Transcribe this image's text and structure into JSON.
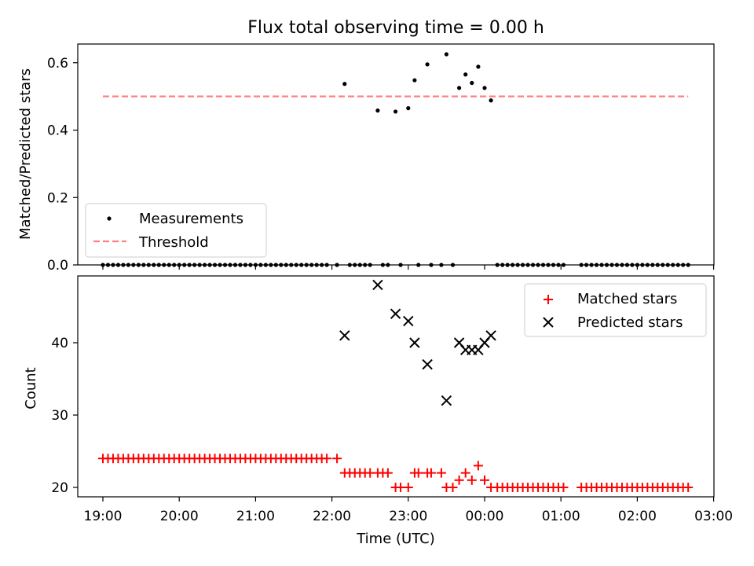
{
  "chart_data": [
    {
      "type": "scatter",
      "title": "Flux total observing time = 0.00 h",
      "ylabel": "Matched/Predicted stars",
      "xlabel": "",
      "xlim": [
        "18:40",
        "03:00"
      ],
      "ylim": [
        0.0,
        0.65
      ],
      "y_ticks": [
        "0.0",
        "0.2",
        "0.4",
        "0.6"
      ],
      "legend": [
        "Measurements",
        "Threshold"
      ],
      "legend_position": "lower-left",
      "threshold": 0.5,
      "threshold_range": [
        "19:00",
        "02:40"
      ],
      "measurements": [
        {
          "t": "19:00",
          "v": 0
        },
        {
          "t": "19:04",
          "v": 0
        },
        {
          "t": "19:08",
          "v": 0
        },
        {
          "t": "19:12",
          "v": 0
        },
        {
          "t": "19:16",
          "v": 0
        },
        {
          "t": "19:20",
          "v": 0
        },
        {
          "t": "19:24",
          "v": 0
        },
        {
          "t": "19:28",
          "v": 0
        },
        {
          "t": "19:32",
          "v": 0
        },
        {
          "t": "19:36",
          "v": 0
        },
        {
          "t": "19:40",
          "v": 0
        },
        {
          "t": "19:44",
          "v": 0
        },
        {
          "t": "19:48",
          "v": 0
        },
        {
          "t": "19:52",
          "v": 0
        },
        {
          "t": "19:56",
          "v": 0
        },
        {
          "t": "20:00",
          "v": 0
        },
        {
          "t": "20:04",
          "v": 0
        },
        {
          "t": "20:08",
          "v": 0
        },
        {
          "t": "20:12",
          "v": 0
        },
        {
          "t": "20:16",
          "v": 0
        },
        {
          "t": "20:20",
          "v": 0
        },
        {
          "t": "20:24",
          "v": 0
        },
        {
          "t": "20:28",
          "v": 0
        },
        {
          "t": "20:32",
          "v": 0
        },
        {
          "t": "20:36",
          "v": 0
        },
        {
          "t": "20:40",
          "v": 0
        },
        {
          "t": "20:44",
          "v": 0
        },
        {
          "t": "20:48",
          "v": 0
        },
        {
          "t": "20:52",
          "v": 0
        },
        {
          "t": "20:56",
          "v": 0
        },
        {
          "t": "21:00",
          "v": 0
        },
        {
          "t": "21:04",
          "v": 0
        },
        {
          "t": "21:08",
          "v": 0
        },
        {
          "t": "21:12",
          "v": 0
        },
        {
          "t": "21:16",
          "v": 0
        },
        {
          "t": "21:20",
          "v": 0
        },
        {
          "t": "21:24",
          "v": 0
        },
        {
          "t": "21:28",
          "v": 0
        },
        {
          "t": "21:32",
          "v": 0
        },
        {
          "t": "21:36",
          "v": 0
        },
        {
          "t": "21:40",
          "v": 0
        },
        {
          "t": "21:44",
          "v": 0
        },
        {
          "t": "21:48",
          "v": 0
        },
        {
          "t": "21:52",
          "v": 0
        },
        {
          "t": "21:56",
          "v": 0
        },
        {
          "t": "22:04",
          "v": 0
        },
        {
          "t": "22:10",
          "v": 0.537
        },
        {
          "t": "22:14",
          "v": 0
        },
        {
          "t": "22:18",
          "v": 0
        },
        {
          "t": "22:22",
          "v": 0
        },
        {
          "t": "22:26",
          "v": 0
        },
        {
          "t": "22:30",
          "v": 0
        },
        {
          "t": "22:36",
          "v": 0.458
        },
        {
          "t": "22:40",
          "v": 0
        },
        {
          "t": "22:44",
          "v": 0
        },
        {
          "t": "22:50",
          "v": 0.455
        },
        {
          "t": "22:54",
          "v": 0
        },
        {
          "t": "23:00",
          "v": 0.465
        },
        {
          "t": "23:05",
          "v": 0.548
        },
        {
          "t": "23:08",
          "v": 0
        },
        {
          "t": "23:15",
          "v": 0.595
        },
        {
          "t": "23:18",
          "v": 0
        },
        {
          "t": "23:26",
          "v": 0
        },
        {
          "t": "23:30",
          "v": 0.625
        },
        {
          "t": "23:35",
          "v": 0
        },
        {
          "t": "23:40",
          "v": 0.525
        },
        {
          "t": "23:45",
          "v": 0.565
        },
        {
          "t": "23:50",
          "v": 0.54
        },
        {
          "t": "23:55",
          "v": 0.588
        },
        {
          "t": "00:00",
          "v": 0.525
        },
        {
          "t": "00:05",
          "v": 0.488
        },
        {
          "t": "00:10",
          "v": 0
        },
        {
          "t": "00:14",
          "v": 0
        },
        {
          "t": "00:18",
          "v": 0
        },
        {
          "t": "00:22",
          "v": 0
        },
        {
          "t": "00:26",
          "v": 0
        },
        {
          "t": "00:30",
          "v": 0
        },
        {
          "t": "00:34",
          "v": 0
        },
        {
          "t": "00:38",
          "v": 0
        },
        {
          "t": "00:42",
          "v": 0
        },
        {
          "t": "00:46",
          "v": 0
        },
        {
          "t": "00:50",
          "v": 0
        },
        {
          "t": "00:54",
          "v": 0
        },
        {
          "t": "00:58",
          "v": 0
        },
        {
          "t": "01:02",
          "v": 0
        },
        {
          "t": "01:16",
          "v": 0
        },
        {
          "t": "01:20",
          "v": 0
        },
        {
          "t": "01:24",
          "v": 0
        },
        {
          "t": "01:28",
          "v": 0
        },
        {
          "t": "01:32",
          "v": 0
        },
        {
          "t": "01:36",
          "v": 0
        },
        {
          "t": "01:40",
          "v": 0
        },
        {
          "t": "01:44",
          "v": 0
        },
        {
          "t": "01:48",
          "v": 0
        },
        {
          "t": "01:52",
          "v": 0
        },
        {
          "t": "01:56",
          "v": 0
        },
        {
          "t": "02:00",
          "v": 0
        },
        {
          "t": "02:04",
          "v": 0
        },
        {
          "t": "02:08",
          "v": 0
        },
        {
          "t": "02:12",
          "v": 0
        },
        {
          "t": "02:16",
          "v": 0
        },
        {
          "t": "02:20",
          "v": 0
        },
        {
          "t": "02:24",
          "v": 0
        },
        {
          "t": "02:28",
          "v": 0
        },
        {
          "t": "02:32",
          "v": 0
        },
        {
          "t": "02:36",
          "v": 0
        },
        {
          "t": "02:40",
          "v": 0
        }
      ]
    },
    {
      "type": "scatter",
      "ylabel": "Count",
      "xlabel": "Time (UTC)",
      "xlim": [
        "18:40",
        "03:00"
      ],
      "ylim": [
        19,
        49
      ],
      "y_ticks": [
        "20",
        "30",
        "40"
      ],
      "x_ticks": [
        "19:00",
        "20:00",
        "21:00",
        "22:00",
        "23:00",
        "00:00",
        "01:00",
        "02:00",
        "03:00"
      ],
      "legend": [
        "Matched stars",
        "Predicted stars"
      ],
      "legend_position": "upper-right",
      "matched": [
        {
          "t": "19:00",
          "v": 24
        },
        {
          "t": "19:04",
          "v": 24
        },
        {
          "t": "19:08",
          "v": 24
        },
        {
          "t": "19:12",
          "v": 24
        },
        {
          "t": "19:16",
          "v": 24
        },
        {
          "t": "19:20",
          "v": 24
        },
        {
          "t": "19:24",
          "v": 24
        },
        {
          "t": "19:28",
          "v": 24
        },
        {
          "t": "19:32",
          "v": 24
        },
        {
          "t": "19:36",
          "v": 24
        },
        {
          "t": "19:40",
          "v": 24
        },
        {
          "t": "19:44",
          "v": 24
        },
        {
          "t": "19:48",
          "v": 24
        },
        {
          "t": "19:52",
          "v": 24
        },
        {
          "t": "19:56",
          "v": 24
        },
        {
          "t": "20:00",
          "v": 24
        },
        {
          "t": "20:04",
          "v": 24
        },
        {
          "t": "20:08",
          "v": 24
        },
        {
          "t": "20:12",
          "v": 24
        },
        {
          "t": "20:16",
          "v": 24
        },
        {
          "t": "20:20",
          "v": 24
        },
        {
          "t": "20:24",
          "v": 24
        },
        {
          "t": "20:28",
          "v": 24
        },
        {
          "t": "20:32",
          "v": 24
        },
        {
          "t": "20:36",
          "v": 24
        },
        {
          "t": "20:40",
          "v": 24
        },
        {
          "t": "20:44",
          "v": 24
        },
        {
          "t": "20:48",
          "v": 24
        },
        {
          "t": "20:52",
          "v": 24
        },
        {
          "t": "20:56",
          "v": 24
        },
        {
          "t": "21:00",
          "v": 24
        },
        {
          "t": "21:04",
          "v": 24
        },
        {
          "t": "21:08",
          "v": 24
        },
        {
          "t": "21:12",
          "v": 24
        },
        {
          "t": "21:16",
          "v": 24
        },
        {
          "t": "21:20",
          "v": 24
        },
        {
          "t": "21:24",
          "v": 24
        },
        {
          "t": "21:28",
          "v": 24
        },
        {
          "t": "21:32",
          "v": 24
        },
        {
          "t": "21:36",
          "v": 24
        },
        {
          "t": "21:40",
          "v": 24
        },
        {
          "t": "21:44",
          "v": 24
        },
        {
          "t": "21:48",
          "v": 24
        },
        {
          "t": "21:52",
          "v": 24
        },
        {
          "t": "21:56",
          "v": 24
        },
        {
          "t": "22:04",
          "v": 24
        },
        {
          "t": "22:10",
          "v": 22
        },
        {
          "t": "22:14",
          "v": 22
        },
        {
          "t": "22:18",
          "v": 22
        },
        {
          "t": "22:22",
          "v": 22
        },
        {
          "t": "22:26",
          "v": 22
        },
        {
          "t": "22:30",
          "v": 22
        },
        {
          "t": "22:36",
          "v": 22
        },
        {
          "t": "22:40",
          "v": 22
        },
        {
          "t": "22:44",
          "v": 22
        },
        {
          "t": "22:50",
          "v": 20
        },
        {
          "t": "22:54",
          "v": 20
        },
        {
          "t": "23:00",
          "v": 20
        },
        {
          "t": "23:05",
          "v": 22
        },
        {
          "t": "23:08",
          "v": 22
        },
        {
          "t": "23:15",
          "v": 22
        },
        {
          "t": "23:18",
          "v": 22
        },
        {
          "t": "23:26",
          "v": 22
        },
        {
          "t": "23:30",
          "v": 20
        },
        {
          "t": "23:35",
          "v": 20
        },
        {
          "t": "23:40",
          "v": 21
        },
        {
          "t": "23:45",
          "v": 22
        },
        {
          "t": "23:50",
          "v": 21
        },
        {
          "t": "23:55",
          "v": 23
        },
        {
          "t": "00:00",
          "v": 21
        },
        {
          "t": "00:05",
          "v": 20
        },
        {
          "t": "00:10",
          "v": 20
        },
        {
          "t": "00:14",
          "v": 20
        },
        {
          "t": "00:18",
          "v": 20
        },
        {
          "t": "00:22",
          "v": 20
        },
        {
          "t": "00:26",
          "v": 20
        },
        {
          "t": "00:30",
          "v": 20
        },
        {
          "t": "00:34",
          "v": 20
        },
        {
          "t": "00:38",
          "v": 20
        },
        {
          "t": "00:42",
          "v": 20
        },
        {
          "t": "00:46",
          "v": 20
        },
        {
          "t": "00:50",
          "v": 20
        },
        {
          "t": "00:54",
          "v": 20
        },
        {
          "t": "00:58",
          "v": 20
        },
        {
          "t": "01:02",
          "v": 20
        },
        {
          "t": "01:16",
          "v": 20
        },
        {
          "t": "01:20",
          "v": 20
        },
        {
          "t": "01:24",
          "v": 20
        },
        {
          "t": "01:28",
          "v": 20
        },
        {
          "t": "01:32",
          "v": 20
        },
        {
          "t": "01:36",
          "v": 20
        },
        {
          "t": "01:40",
          "v": 20
        },
        {
          "t": "01:44",
          "v": 20
        },
        {
          "t": "01:48",
          "v": 20
        },
        {
          "t": "01:52",
          "v": 20
        },
        {
          "t": "01:56",
          "v": 20
        },
        {
          "t": "02:00",
          "v": 20
        },
        {
          "t": "02:04",
          "v": 20
        },
        {
          "t": "02:08",
          "v": 20
        },
        {
          "t": "02:12",
          "v": 20
        },
        {
          "t": "02:16",
          "v": 20
        },
        {
          "t": "02:20",
          "v": 20
        },
        {
          "t": "02:24",
          "v": 20
        },
        {
          "t": "02:28",
          "v": 20
        },
        {
          "t": "02:32",
          "v": 20
        },
        {
          "t": "02:36",
          "v": 20
        },
        {
          "t": "02:40",
          "v": 20
        }
      ],
      "predicted": [
        {
          "t": "22:10",
          "v": 41
        },
        {
          "t": "22:36",
          "v": 48
        },
        {
          "t": "22:50",
          "v": 44
        },
        {
          "t": "23:00",
          "v": 43
        },
        {
          "t": "23:05",
          "v": 40
        },
        {
          "t": "23:15",
          "v": 37
        },
        {
          "t": "23:30",
          "v": 32
        },
        {
          "t": "23:40",
          "v": 40
        },
        {
          "t": "23:45",
          "v": 39
        },
        {
          "t": "23:50",
          "v": 39
        },
        {
          "t": "23:55",
          "v": 39
        },
        {
          "t": "00:00",
          "v": 40
        },
        {
          "t": "00:05",
          "v": 41
        }
      ]
    }
  ],
  "colors": {
    "measurements": "#000000",
    "threshold": "#ff7f7f",
    "matched": "#ff0000",
    "predicted": "#000000"
  }
}
